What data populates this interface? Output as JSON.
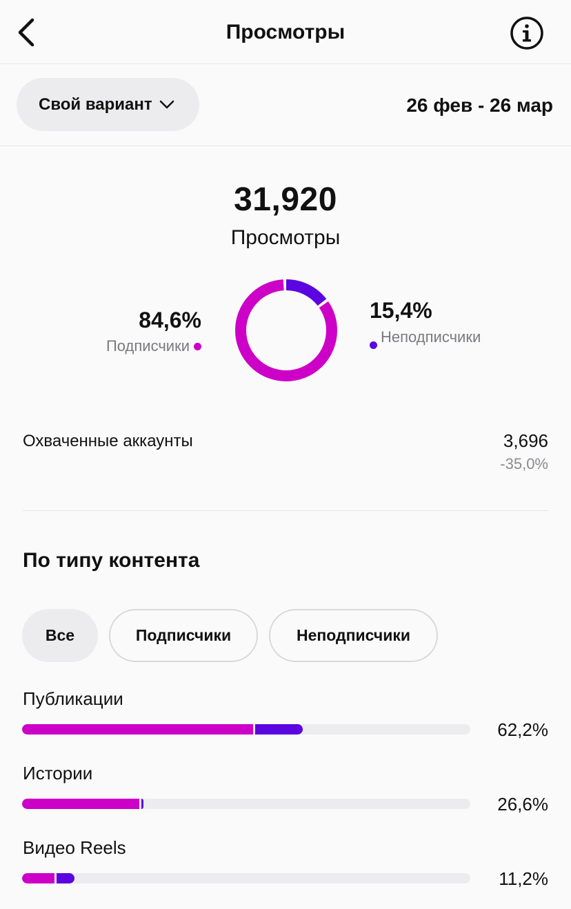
{
  "header": {
    "title": "Просмотры",
    "back_icon": "chevron-left-icon",
    "info_icon": "info-icon"
  },
  "filters": {
    "variant_label": "Свой вариант",
    "date_range": "26 фев - 26 мар"
  },
  "summary": {
    "total_value": "31,920",
    "total_label": "Просмотры",
    "followers": {
      "pct": "84,6%",
      "label": "Подписчики",
      "fraction": 0.846
    },
    "non_followers": {
      "pct": "15,4%",
      "label": "Неподписчики",
      "fraction": 0.154
    }
  },
  "reach": {
    "label": "Охваченные аккаунты",
    "value": "3,696",
    "delta": "-35,0%"
  },
  "content_type": {
    "title": "По типу контента",
    "chips": [
      "Все",
      "Подписчики",
      "Неподписчики"
    ],
    "active_chip": "Все",
    "items": [
      {
        "label": "Публикации",
        "pct": "62,2%",
        "followers_fraction": 0.515,
        "non_followers_fraction": 0.107
      },
      {
        "label": "Истории",
        "pct": "26,6%",
        "followers_fraction": 0.261,
        "non_followers_fraction": 0.005
      },
      {
        "label": "Видео Reels",
        "pct": "11,2%",
        "followers_fraction": 0.073,
        "non_followers_fraction": 0.039
      }
    ]
  },
  "colors": {
    "followers": "#cc00c7",
    "non_followers": "#5b06e0",
    "track": "#ececee"
  }
}
